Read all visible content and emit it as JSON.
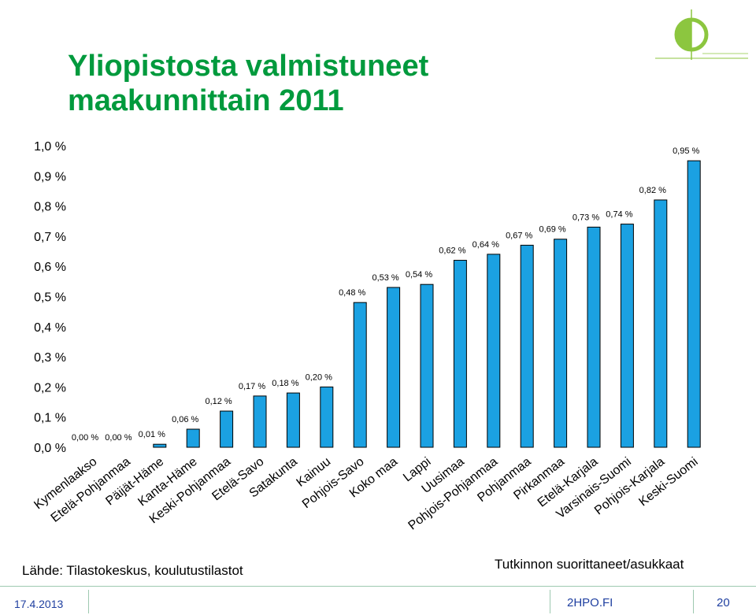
{
  "slide": {
    "title": "Yliopistosta valmistuneet maakunnittain 2011",
    "source": "Lähde: Tilastokeskus, koulutustilastot",
    "note": "Tutkinnon suorittaneet/asukkaat"
  },
  "footer": {
    "date": "17.4.2013",
    "site": "2HPO.FI",
    "page": "20"
  },
  "colors": {
    "title": "#009a3d",
    "bar": "#1ba1e2",
    "bar_edge": "#000000",
    "footer_text": "#1f3fa0",
    "logo_green": "#8cc63f"
  },
  "chart_data": {
    "type": "bar",
    "title": "",
    "xlabel": "",
    "ylabel": "",
    "ylim": [
      0.0,
      1.0
    ],
    "grid": false,
    "legend": "none",
    "y_ticks": [
      "0,0 %",
      "0,1 %",
      "0,2 %",
      "0,3 %",
      "0,4 %",
      "0,5 %",
      "0,6 %",
      "0,7 %",
      "0,8 %",
      "0,9 %",
      "1,0 %"
    ],
    "categories": [
      "Kymenlaakso",
      "Etelä-Pohjanmaa",
      "Päijät-Häme",
      "Kanta-Häme",
      "Keski-Pohjanmaa",
      "Etelä-Savo",
      "Satakunta",
      "Kainuu",
      "Pohjois-Savo",
      "Koko maa",
      "Lappi",
      "Uusimaa",
      "Pohjois-Pohjanmaa",
      "Pohjanmaa",
      "Pirkanmaa",
      "Etelä-Karjala",
      "Varsinais-Suomi",
      "Pohjois-Karjala",
      "Keski-Suomi"
    ],
    "values": [
      0.0,
      0.0,
      0.01,
      0.06,
      0.12,
      0.17,
      0.18,
      0.2,
      0.48,
      0.53,
      0.54,
      0.62,
      0.64,
      0.67,
      0.69,
      0.73,
      0.74,
      0.82,
      0.95
    ],
    "data_labels": [
      "0,00 %",
      "0,00 %",
      "0,01 %",
      "0,06 %",
      "0,12 %",
      "0,17 %",
      "0,18 %",
      "0,20 %",
      "0,48 %",
      "0,53 %",
      "0,54 %",
      "0,62 %",
      "0,64 %",
      "0,67 %",
      "0,69 %",
      "0,73 %",
      "0,74 %",
      "0,82 %",
      "0,95 %"
    ]
  }
}
